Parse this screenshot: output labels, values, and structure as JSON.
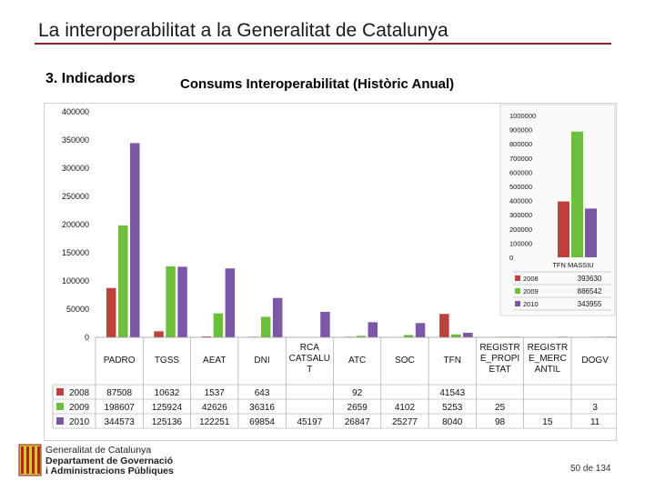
{
  "header": {
    "title": "La interoperabilitat a la Generalitat de Catalunya",
    "section": "3. Indicadors",
    "subtitle": "Consums Interoperabilitat (Històric Anual)"
  },
  "colors": {
    "s2008": "#c0403c",
    "s2009": "#6cbf3c",
    "s2010": "#7b58a6",
    "accent": "#a31f1f"
  },
  "chart_data": [
    {
      "type": "bar",
      "title": "",
      "xlabel": "",
      "ylabel": "",
      "ylim": [
        0,
        400000
      ],
      "yticks": [
        "0",
        "50000",
        "100000",
        "150000",
        "200000",
        "250000",
        "300000",
        "350000",
        "400000"
      ],
      "categories": [
        "PADRO",
        "TGSS",
        "AEAT",
        "DNI",
        "RCA CATSALUT",
        "ATC",
        "SOC",
        "TFN",
        "REGISTRE_PROPIETAT",
        "REGISTRE_MERCANTIL",
        "DOGV"
      ],
      "category_labels": [
        "PADRO",
        "TGSS",
        "AEAT",
        "DNI",
        "RCA CATSALU T",
        "ATC",
        "SOC",
        "TFN",
        "REGISTR E_PROPI ETAT",
        "REGISTR E_MERC ANTIL",
        "DOGV"
      ],
      "series": [
        {
          "name": "2008",
          "values": [
            87508,
            10632,
            1537,
            643,
            null,
            92,
            null,
            41543,
            null,
            null,
            null
          ],
          "labels": [
            "87508",
            "10632",
            "1537",
            "643",
            "",
            "92",
            "",
            "41543",
            "",
            "",
            ""
          ]
        },
        {
          "name": "2009",
          "values": [
            198607,
            125924,
            42626,
            36316,
            null,
            2659,
            4102,
            5253,
            25,
            null,
            3
          ],
          "labels": [
            "198607",
            "125924",
            "42626",
            "36316",
            "",
            "2659",
            "4102",
            "5253",
            "25",
            "",
            "3"
          ]
        },
        {
          "name": "2010",
          "values": [
            344573,
            125136,
            122251,
            69854,
            45197,
            26847,
            25277,
            8040,
            98,
            15,
            11
          ],
          "labels": [
            "344573",
            "125136",
            "122251",
            "69854",
            "45197",
            "26847",
            "25277",
            "8040",
            "98",
            "15",
            "11"
          ]
        }
      ]
    },
    {
      "type": "bar",
      "title": "",
      "ylim": [
        0,
        1000000
      ],
      "yticks": [
        "0",
        "100000",
        "200000",
        "300000",
        "400000",
        "500000",
        "600000",
        "700000",
        "800000",
        "900000",
        "1000000"
      ],
      "categories": [
        "TFN MASSIU"
      ],
      "series": [
        {
          "name": "2008",
          "values": [
            393630
          ],
          "labels": [
            "393630"
          ]
        },
        {
          "name": "2009",
          "values": [
            886542
          ],
          "labels": [
            "886542"
          ]
        },
        {
          "name": "2010",
          "values": [
            343955
          ],
          "labels": [
            "343955"
          ]
        }
      ]
    }
  ],
  "footer": {
    "logo_line1": "Generalitat de Catalunya",
    "logo_line2": "Departament de Governació",
    "logo_line3": "i Administracions Públiques",
    "page": "50 de 134"
  }
}
